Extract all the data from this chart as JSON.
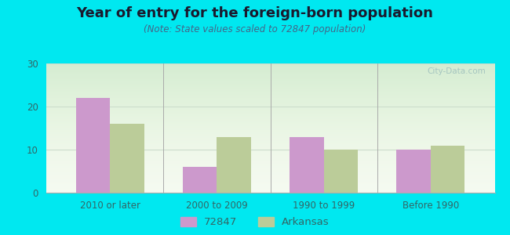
{
  "title": "Year of entry for the foreign-born population",
  "subtitle": "(Note: State values scaled to 72847 population)",
  "categories": [
    "2010 or later",
    "2000 to 2009",
    "1990 to 1999",
    "Before 1990"
  ],
  "series_72847": [
    22,
    6,
    13,
    10
  ],
  "series_arkansas": [
    16,
    13,
    10,
    11
  ],
  "color_72847": "#cc99cc",
  "color_arkansas": "#bbcc99",
  "background_outer": "#00e8f0",
  "background_inner_top": "#e8f5e8",
  "background_inner_bottom": "#ffffff",
  "ylim": [
    0,
    30
  ],
  "yticks": [
    0,
    10,
    20,
    30
  ],
  "legend_label_1": "72847",
  "legend_label_2": "Arkansas",
  "bar_width": 0.32,
  "title_fontsize": 13,
  "subtitle_fontsize": 8.5,
  "tick_fontsize": 8.5,
  "legend_fontsize": 9.5
}
